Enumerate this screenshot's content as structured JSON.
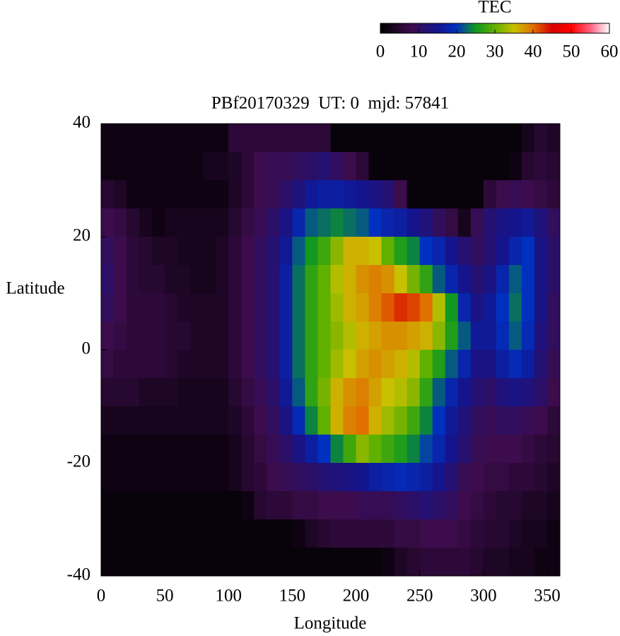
{
  "chart_data": {
    "type": "heatmap",
    "title": "PBf20170329  UT: 0  mjd: 57841",
    "x_label": "Longitude",
    "y_label": "Latitude",
    "colorbar_label": "TEC",
    "x": [
      5,
      15,
      25,
      35,
      45,
      55,
      65,
      75,
      85,
      95,
      105,
      115,
      125,
      135,
      145,
      155,
      165,
      175,
      185,
      195,
      205,
      215,
      225,
      235,
      245,
      255,
      265,
      275,
      285,
      295,
      305,
      315,
      325,
      335,
      345,
      355
    ],
    "y": [
      37.5,
      32.5,
      27.5,
      22.5,
      17.5,
      12.5,
      7.5,
      2.5,
      -2.5,
      -7.5,
      -12.5,
      -17.5,
      -22.5,
      -27.5,
      -32.5,
      -37.5
    ],
    "xlim": [
      0,
      360
    ],
    "ylim": [
      -40,
      40
    ],
    "xticks": [
      0,
      50,
      100,
      150,
      200,
      250,
      300,
      350
    ],
    "yticks": [
      -40,
      -20,
      0,
      20,
      40
    ],
    "clim": [
      0,
      60
    ],
    "cticks": [
      0,
      10,
      20,
      30,
      40,
      50,
      60
    ],
    "colorscale": [
      [
        0,
        "#000000"
      ],
      [
        8,
        "#3c0c4c"
      ],
      [
        15,
        "#14148c"
      ],
      [
        20,
        "#0030c0"
      ],
      [
        25,
        "#109820"
      ],
      [
        30,
        "#60b000"
      ],
      [
        35,
        "#c8c000"
      ],
      [
        40,
        "#e07000"
      ],
      [
        45,
        "#d80000"
      ],
      [
        50,
        "#ff0000"
      ],
      [
        55,
        "#ff6080"
      ],
      [
        60,
        "#ffffff"
      ]
    ],
    "values": [
      [
        2,
        2,
        2,
        2,
        2,
        2,
        2,
        2,
        2,
        2,
        6,
        6,
        6,
        6,
        6,
        6,
        6,
        6,
        1,
        1,
        1,
        1,
        1,
        1,
        1,
        1,
        1,
        1,
        1,
        1,
        1,
        1,
        1,
        3,
        5,
        4
      ],
      [
        2,
        2,
        2,
        2,
        2,
        2,
        2,
        2,
        3,
        3,
        4,
        6,
        8,
        9,
        9,
        10,
        11,
        12,
        10,
        8,
        6,
        1,
        1,
        1,
        1,
        1,
        1,
        1,
        1,
        1,
        1,
        1,
        2,
        5,
        6,
        5
      ],
      [
        5,
        4,
        2,
        2,
        2,
        2,
        2,
        2,
        2,
        2,
        4,
        6,
        8,
        9,
        11,
        13,
        16,
        17,
        17,
        16,
        15,
        14,
        12,
        8,
        1,
        1,
        1,
        1,
        1,
        1,
        6,
        8,
        9,
        8,
        7,
        6
      ],
      [
        8,
        7,
        5,
        3,
        2,
        3,
        3,
        3,
        3,
        3,
        5,
        7,
        9,
        11,
        14,
        18,
        22,
        23,
        24,
        23,
        22,
        20,
        18,
        17,
        15,
        13,
        10,
        7,
        3,
        9,
        12,
        14,
        15,
        16,
        13,
        10
      ],
      [
        10,
        8,
        6,
        5,
        4,
        4,
        3,
        3,
        3,
        4,
        6,
        8,
        10,
        12,
        16,
        22,
        25,
        28,
        32,
        36,
        36,
        35,
        30,
        26,
        24,
        20,
        18,
        15,
        12,
        10,
        12,
        15,
        18,
        20,
        14,
        11
      ],
      [
        11,
        8,
        6,
        5,
        5,
        4,
        4,
        3,
        3,
        4,
        6,
        8,
        10,
        12,
        17,
        23,
        27,
        30,
        34,
        36,
        38,
        39,
        38,
        35,
        31,
        27,
        22,
        18,
        15,
        12,
        14,
        18,
        22,
        20,
        14,
        11
      ],
      [
        10,
        8,
        6,
        6,
        6,
        5,
        4,
        4,
        4,
        4,
        6,
        8,
        10,
        12,
        17,
        23,
        27,
        30,
        33,
        36,
        37,
        39,
        41,
        43,
        42,
        40,
        34,
        25,
        18,
        14,
        16,
        20,
        23,
        20,
        14,
        10
      ],
      [
        8,
        7,
        6,
        6,
        6,
        5,
        5,
        4,
        4,
        4,
        6,
        8,
        10,
        12,
        17,
        23,
        27,
        30,
        32,
        34,
        36,
        37,
        38,
        38,
        37,
        36,
        32,
        26,
        22,
        16,
        16,
        19,
        22,
        19,
        13,
        10
      ],
      [
        7,
        6,
        6,
        6,
        6,
        5,
        4,
        4,
        4,
        4,
        6,
        8,
        10,
        12,
        17,
        23,
        27,
        30,
        33,
        35,
        37,
        38,
        37,
        36,
        34,
        30,
        26,
        22,
        18,
        14,
        14,
        17,
        19,
        17,
        12,
        9
      ],
      [
        5,
        5,
        5,
        4,
        4,
        4,
        3,
        3,
        3,
        3,
        5,
        7,
        9,
        11,
        16,
        22,
        27,
        31,
        36,
        38,
        39,
        37,
        35,
        34,
        32,
        27,
        22,
        18,
        15,
        12,
        11,
        13,
        14,
        13,
        11,
        8
      ],
      [
        3,
        3,
        3,
        3,
        3,
        3,
        3,
        3,
        3,
        3,
        4,
        6,
        8,
        10,
        14,
        19,
        24,
        30,
        36,
        39,
        40,
        36,
        33,
        31,
        28,
        24,
        20,
        16,
        13,
        10,
        9,
        10,
        10,
        9,
        8,
        6
      ],
      [
        2,
        2,
        2,
        2,
        2,
        2,
        2,
        2,
        2,
        2,
        3,
        5,
        7,
        9,
        11,
        14,
        17,
        20,
        24,
        28,
        32,
        30,
        28,
        26,
        24,
        21,
        18,
        15,
        12,
        9,
        8,
        8,
        8,
        7,
        6,
        5
      ],
      [
        2,
        2,
        2,
        2,
        2,
        2,
        2,
        2,
        2,
        2,
        3,
        5,
        6,
        8,
        9,
        10,
        11,
        12,
        13,
        14,
        15,
        17,
        18,
        19,
        18,
        17,
        15,
        12,
        9,
        8,
        7,
        7,
        6,
        6,
        5,
        4
      ],
      [
        1,
        1,
        1,
        1,
        1,
        1,
        1,
        1,
        1,
        1,
        1,
        2,
        5,
        6,
        6,
        7,
        7,
        8,
        8,
        8,
        9,
        9,
        9,
        10,
        11,
        12,
        11,
        10,
        8,
        7,
        6,
        5,
        5,
        4,
        4,
        3
      ],
      [
        1,
        1,
        1,
        1,
        1,
        1,
        1,
        1,
        1,
        1,
        1,
        1,
        1,
        1,
        1,
        2,
        4,
        5,
        6,
        6,
        6,
        6,
        6,
        7,
        7,
        8,
        8,
        8,
        7,
        6,
        5,
        5,
        4,
        3,
        3,
        2
      ],
      [
        1,
        1,
        1,
        1,
        1,
        1,
        1,
        1,
        1,
        1,
        1,
        1,
        1,
        1,
        1,
        1,
        1,
        1,
        1,
        1,
        1,
        1,
        2,
        4,
        5,
        6,
        6,
        6,
        6,
        5,
        4,
        4,
        3,
        3,
        2,
        2
      ]
    ]
  }
}
